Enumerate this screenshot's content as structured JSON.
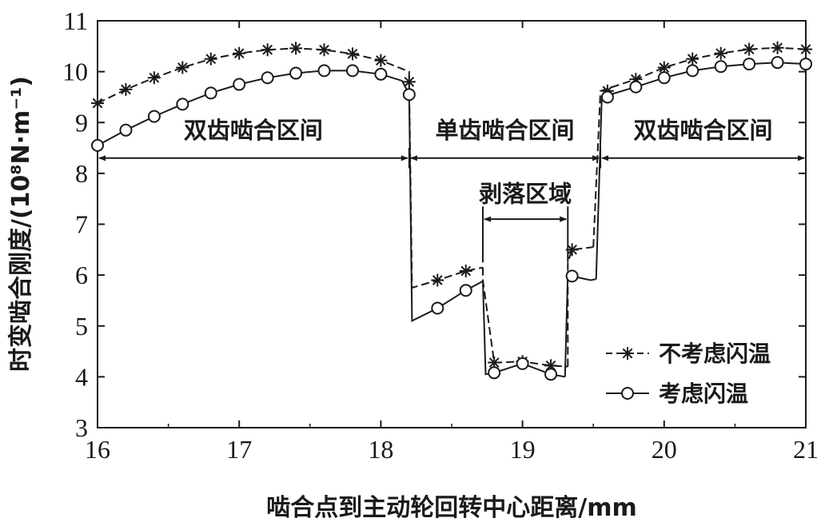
{
  "chart_data": {
    "type": "line",
    "xlabel": "啮合点到主动轮回转中心距离/mm",
    "ylabel": "时变啮合刚度/(10⁸N·m⁻¹)",
    "xlim": [
      16,
      21
    ],
    "ylim": [
      3,
      11
    ],
    "x_ticks": [
      "16",
      "17",
      "18",
      "19",
      "20",
      "21"
    ],
    "y_ticks": [
      "3",
      "4",
      "5",
      "6",
      "7",
      "8",
      "9",
      "10",
      "11"
    ],
    "grid": false,
    "legend_position": "bottom-right",
    "series": [
      {
        "name": "不考虑闪温",
        "color": "#1a1a1a",
        "style": "dashed",
        "marker": "asterisk",
        "segments": [
          [
            [
              16.0,
              9.38
            ],
            [
              16.2,
              9.65
            ],
            [
              16.4,
              9.88
            ],
            [
              16.6,
              10.08
            ],
            [
              16.8,
              10.25
            ],
            [
              17.0,
              10.36
            ],
            [
              17.2,
              10.43
            ],
            [
              17.4,
              10.46
            ],
            [
              17.6,
              10.43
            ],
            [
              17.8,
              10.35
            ],
            [
              18.0,
              10.22
            ],
            [
              18.2,
              10.0
            ],
            [
              18.2,
              9.8
            ]
          ],
          [
            [
              18.2,
              9.8
            ],
            [
              18.22,
              5.75
            ],
            [
              18.4,
              5.9
            ],
            [
              18.6,
              6.08
            ],
            [
              18.72,
              6.15
            ]
          ],
          [
            [
              18.72,
              6.15
            ],
            [
              18.72,
              5.9
            ],
            [
              18.8,
              4.28
            ],
            [
              19.0,
              4.3
            ],
            [
              19.2,
              4.22
            ],
            [
              19.32,
              4.2
            ]
          ],
          [
            [
              19.32,
              4.2
            ],
            [
              19.32,
              6.25
            ],
            [
              19.35,
              6.5
            ],
            [
              19.5,
              6.55
            ]
          ],
          [
            [
              19.5,
              6.55
            ],
            [
              19.55,
              9.62
            ],
            [
              19.8,
              9.85
            ],
            [
              20.0,
              10.08
            ],
            [
              20.2,
              10.25
            ],
            [
              20.4,
              10.36
            ],
            [
              20.6,
              10.44
            ],
            [
              20.8,
              10.47
            ],
            [
              21.0,
              10.44
            ]
          ]
        ],
        "markers_x": [
          16.0,
          16.2,
          16.4,
          16.6,
          16.8,
          17.0,
          17.2,
          17.4,
          17.6,
          17.8,
          18.0,
          18.2,
          18.4,
          18.6,
          18.8,
          19.0,
          19.2,
          19.35,
          19.6,
          19.8,
          20.0,
          20.2,
          20.4,
          20.6,
          20.8,
          21.0
        ],
        "markers_y": [
          9.38,
          9.65,
          9.88,
          10.08,
          10.25,
          10.36,
          10.43,
          10.46,
          10.43,
          10.35,
          10.22,
          9.8,
          5.9,
          6.08,
          4.28,
          4.3,
          4.22,
          6.5,
          9.62,
          9.85,
          10.08,
          10.25,
          10.36,
          10.44,
          10.47,
          10.44
        ]
      },
      {
        "name": "考虑闪温",
        "color": "#1a1a1a",
        "style": "solid",
        "marker": "circle",
        "segments": [
          [
            [
              16.0,
              8.55
            ],
            [
              16.2,
              8.85
            ],
            [
              16.4,
              9.12
            ],
            [
              16.6,
              9.36
            ],
            [
              16.8,
              9.58
            ],
            [
              17.0,
              9.75
            ],
            [
              17.2,
              9.88
            ],
            [
              17.4,
              9.97
            ],
            [
              17.6,
              10.02
            ],
            [
              17.8,
              10.02
            ],
            [
              18.0,
              9.95
            ],
            [
              18.15,
              9.82
            ],
            [
              18.2,
              9.55
            ]
          ],
          [
            [
              18.2,
              9.55
            ],
            [
              18.22,
              5.1
            ],
            [
              18.4,
              5.35
            ],
            [
              18.6,
              5.7
            ],
            [
              18.72,
              5.88
            ]
          ],
          [
            [
              18.72,
              5.88
            ],
            [
              18.74,
              4.05
            ],
            [
              18.8,
              4.08
            ],
            [
              19.0,
              4.26
            ],
            [
              19.2,
              4.05
            ],
            [
              19.3,
              4.0
            ]
          ],
          [
            [
              19.3,
              4.0
            ],
            [
              19.32,
              6.05
            ],
            [
              19.35,
              5.98
            ],
            [
              19.48,
              5.9
            ],
            [
              19.52,
              5.92
            ]
          ],
          [
            [
              19.52,
              5.92
            ],
            [
              19.56,
              9.5
            ],
            [
              19.8,
              9.7
            ],
            [
              20.0,
              9.88
            ],
            [
              20.2,
              10.02
            ],
            [
              20.4,
              10.1
            ],
            [
              20.6,
              10.15
            ],
            [
              20.8,
              10.18
            ],
            [
              21.0,
              10.15
            ]
          ]
        ],
        "markers_x": [
          16.0,
          16.2,
          16.4,
          16.6,
          16.8,
          17.0,
          17.2,
          17.4,
          17.6,
          17.8,
          18.0,
          18.2,
          18.4,
          18.6,
          18.8,
          19.0,
          19.2,
          19.35,
          19.6,
          19.8,
          20.0,
          20.2,
          20.4,
          20.6,
          20.8,
          21.0
        ],
        "markers_y": [
          8.55,
          8.85,
          9.12,
          9.36,
          9.58,
          9.75,
          9.88,
          9.97,
          10.02,
          10.02,
          9.95,
          9.55,
          5.35,
          5.7,
          4.08,
          4.26,
          4.05,
          5.98,
          9.5,
          9.7,
          9.88,
          10.02,
          10.1,
          10.15,
          10.18,
          10.15
        ]
      }
    ],
    "annotations": [
      {
        "text": "双齿啮合区间",
        "x_start": 16.0,
        "x_end": 18.2,
        "arrow_y": 8.3,
        "text_y": 8.85
      },
      {
        "text": "单齿啮合区间",
        "x_start": 18.2,
        "x_end": 19.55,
        "arrow_y": 8.3,
        "text_y": 8.85
      },
      {
        "text": "双齿啮合区间",
        "x_start": 19.55,
        "x_end": 21.0,
        "arrow_y": 8.3,
        "text_y": 8.85
      },
      {
        "text": "剥落区域",
        "x_start": 18.72,
        "x_end": 19.32,
        "arrow_y": 7.1,
        "text_y": 7.6
      }
    ]
  }
}
